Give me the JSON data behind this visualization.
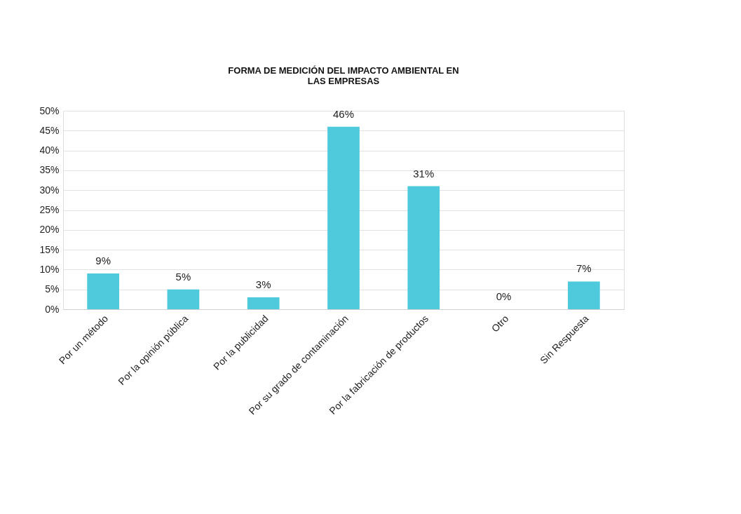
{
  "chart_data": {
    "type": "bar",
    "title": "FORMA DE MEDICIÓN DEL IMPACTO AMBIENTAL EN\nLAS EMPRESAS",
    "categories": [
      "Por un método",
      "Por la opinión pública",
      "Por la publicidad",
      "Por su grado de contaminación",
      "Por la fabricación de productos",
      "Otro",
      "Sin Respuesta"
    ],
    "values": [
      9,
      5,
      3,
      46,
      31,
      0,
      7
    ],
    "value_labels": [
      "9%",
      "5%",
      "3%",
      "46%",
      "31%",
      "0%",
      "7%"
    ],
    "color": "#4fc9dc",
    "ylim": [
      0,
      50
    ],
    "yticks": [
      {
        "value": 0,
        "label": "0%"
      },
      {
        "value": 5,
        "label": "5%"
      },
      {
        "value": 10,
        "label": "10%"
      },
      {
        "value": 15,
        "label": "15%"
      },
      {
        "value": 20,
        "label": "20%"
      },
      {
        "value": 25,
        "label": "25%"
      },
      {
        "value": 30,
        "label": "30%"
      },
      {
        "value": 35,
        "label": "35%"
      },
      {
        "value": 40,
        "label": "40%"
      },
      {
        "value": 45,
        "label": "45%"
      },
      {
        "value": 50,
        "label": "50%"
      }
    ],
    "grid": "y"
  }
}
